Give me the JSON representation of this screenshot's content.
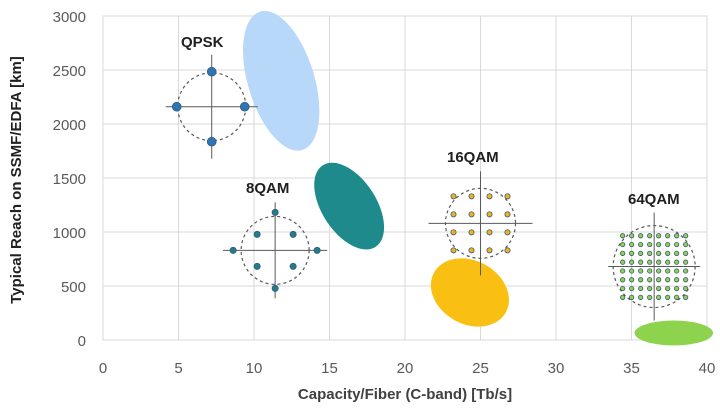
{
  "chart_data": {
    "type": "scatter",
    "title": "",
    "xlabel": "Capacity/Fiber (C-band) [Tb/s]",
    "ylabel": "Typical Reach on SSMF/EDFA  [km]",
    "xlim": [
      0,
      40
    ],
    "ylim": [
      0,
      3000
    ],
    "x_ticks": [
      0,
      5,
      10,
      15,
      20,
      25,
      30,
      35,
      40
    ],
    "y_ticks": [
      0,
      500,
      1000,
      1500,
      2000,
      2500,
      3000
    ],
    "x_tick_labels": [
      "0",
      "5",
      "10",
      "15",
      "20",
      "25",
      "30",
      "35",
      "40"
    ],
    "y_tick_labels": [
      "0",
      "500",
      "1000",
      "1500",
      "2000",
      "2500",
      "3000"
    ],
    "grid": true,
    "legend": "none",
    "modulation_groups": [
      {
        "label": "QPSK",
        "center": [
          7.2,
          2160
        ],
        "marker_color": "#2e75b6",
        "constellation": "4-point"
      },
      {
        "label": "8QAM",
        "center": [
          11.4,
          830
        ],
        "marker_color": "#1f7f86",
        "constellation": "8-point"
      },
      {
        "label": "16QAM",
        "center": [
          25,
          1080
        ],
        "marker_color": "#f2b21b",
        "constellation": "4x4 grid"
      },
      {
        "label": "64QAM",
        "center": [
          36.5,
          680
        ],
        "marker_color": "#92d050",
        "constellation": "8x8 grid"
      }
    ],
    "capacity_reach_regions": [
      {
        "center": [
          11.8,
          2400
        ],
        "x_radius": 2.2,
        "y_radius": 670,
        "angle_deg": -17,
        "color": "#b7d8f8"
      },
      {
        "center": [
          16.3,
          1240
        ],
        "x_radius": 1.8,
        "y_radius": 450,
        "angle_deg": -33,
        "color": "#1f8a8c"
      },
      {
        "center": [
          24.3,
          440
        ],
        "x_radius": 2.1,
        "y_radius": 380,
        "angle_deg": -61,
        "color": "#f9bf12"
      },
      {
        "center": [
          37.8,
          65
        ],
        "x_radius": 2.6,
        "y_radius": 115,
        "angle_deg": 0,
        "color": "#8ed34e"
      }
    ]
  }
}
